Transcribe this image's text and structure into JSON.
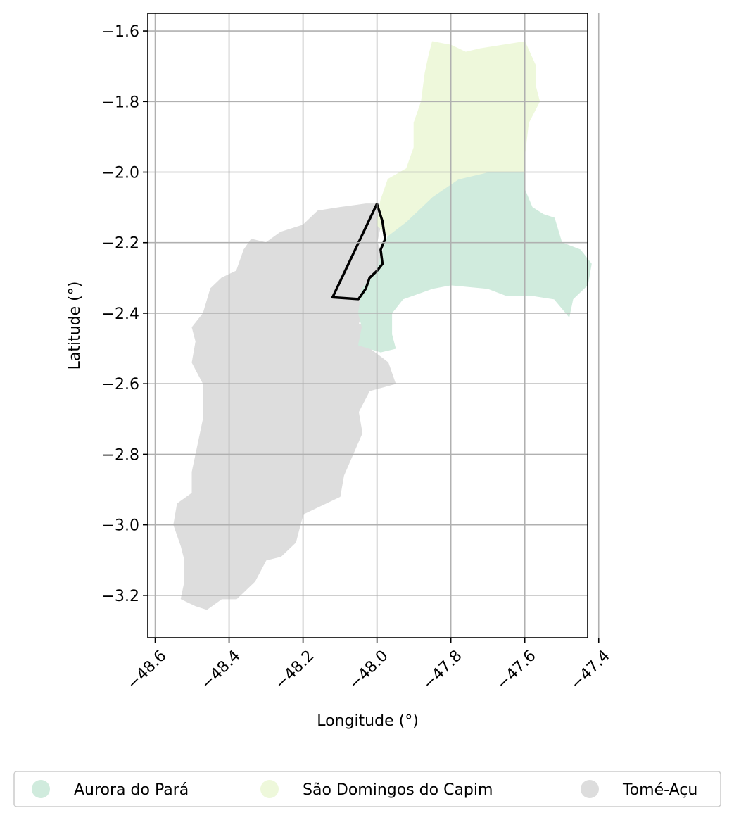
{
  "map": {
    "xlabel": "Longitude (°)",
    "ylabel": "Latitude (°)",
    "xlim": [
      -48.62,
      -47.43
    ],
    "ylim": [
      -3.32,
      -1.55
    ],
    "x_ticks": [
      -48.6,
      -48.4,
      -48.2,
      -48.0,
      -47.8,
      -47.6,
      -47.4
    ],
    "x_tick_labels": [
      "−48.6",
      "−48.4",
      "−48.2",
      "−48.0",
      "−47.8",
      "−47.6",
      "−47.4"
    ],
    "y_ticks": [
      -1.6,
      -1.8,
      -2.0,
      -2.2,
      -2.4,
      -2.6,
      -2.8,
      -3.0,
      -3.2
    ],
    "y_tick_labels": [
      "−1.6",
      "−1.8",
      "−2.0",
      "−2.2",
      "−2.4",
      "−2.6",
      "−2.8",
      "−3.0",
      "−3.2"
    ],
    "grid": true,
    "regions": [
      {
        "name": "Tomé-Açu",
        "color": "#dddddd",
        "outline": [
          [
            -48.49,
            -3.23
          ],
          [
            -48.53,
            -3.21
          ],
          [
            -48.52,
            -3.16
          ],
          [
            -48.52,
            -3.1
          ],
          [
            -48.53,
            -3.06
          ],
          [
            -48.55,
            -3.0
          ],
          [
            -48.54,
            -2.94
          ],
          [
            -48.5,
            -2.91
          ],
          [
            -48.5,
            -2.85
          ],
          [
            -48.49,
            -2.8
          ],
          [
            -48.47,
            -2.7
          ],
          [
            -48.47,
            -2.6
          ],
          [
            -48.5,
            -2.54
          ],
          [
            -48.49,
            -2.48
          ],
          [
            -48.5,
            -2.44
          ],
          [
            -48.47,
            -2.4
          ],
          [
            -48.45,
            -2.33
          ],
          [
            -48.42,
            -2.3
          ],
          [
            -48.38,
            -2.28
          ],
          [
            -48.36,
            -2.22
          ],
          [
            -48.34,
            -2.19
          ],
          [
            -48.3,
            -2.2
          ],
          [
            -48.26,
            -2.17
          ],
          [
            -48.2,
            -2.15
          ],
          [
            -48.16,
            -2.11
          ],
          [
            -48.1,
            -2.1
          ],
          [
            -48.03,
            -2.09
          ],
          [
            -48.0,
            -2.09
          ],
          [
            -47.99,
            -2.15
          ],
          [
            -48.0,
            -2.2
          ],
          [
            -47.98,
            -2.24
          ],
          [
            -47.99,
            -2.28
          ],
          [
            -48.03,
            -2.32
          ],
          [
            -48.05,
            -2.36
          ],
          [
            -48.04,
            -2.4
          ],
          [
            -48.05,
            -2.43
          ],
          [
            -48.02,
            -2.44
          ],
          [
            -48.02,
            -2.5
          ],
          [
            -47.97,
            -2.54
          ],
          [
            -47.95,
            -2.6
          ],
          [
            -48.02,
            -2.62
          ],
          [
            -48.05,
            -2.68
          ],
          [
            -48.04,
            -2.74
          ],
          [
            -48.09,
            -2.86
          ],
          [
            -48.1,
            -2.92
          ],
          [
            -48.2,
            -2.97
          ],
          [
            -48.22,
            -3.05
          ],
          [
            -48.26,
            -3.09
          ],
          [
            -48.3,
            -3.1
          ],
          [
            -48.33,
            -3.16
          ],
          [
            -48.38,
            -3.21
          ],
          [
            -48.42,
            -3.21
          ],
          [
            -48.46,
            -3.24
          ]
        ]
      },
      {
        "name": "Aurora do Pará",
        "color": "#d0ebdd",
        "outline": [
          [
            -47.6,
            -2.0
          ],
          [
            -47.7,
            -2.0
          ],
          [
            -47.78,
            -2.02
          ],
          [
            -47.85,
            -2.07
          ],
          [
            -47.92,
            -2.14
          ],
          [
            -47.97,
            -2.18
          ],
          [
            -47.99,
            -2.24
          ],
          [
            -48.0,
            -2.28
          ],
          [
            -48.04,
            -2.33
          ],
          [
            -48.05,
            -2.4
          ],
          [
            -48.04,
            -2.44
          ],
          [
            -48.05,
            -2.49
          ],
          [
            -47.99,
            -2.51
          ],
          [
            -47.95,
            -2.5
          ],
          [
            -47.96,
            -2.46
          ],
          [
            -47.96,
            -2.4
          ],
          [
            -47.93,
            -2.36
          ],
          [
            -47.85,
            -2.33
          ],
          [
            -47.8,
            -2.32
          ],
          [
            -47.7,
            -2.33
          ],
          [
            -47.65,
            -2.35
          ],
          [
            -47.58,
            -2.35
          ],
          [
            -47.52,
            -2.36
          ],
          [
            -47.48,
            -2.41
          ],
          [
            -47.47,
            -2.36
          ],
          [
            -47.43,
            -2.32
          ],
          [
            -47.42,
            -2.26
          ],
          [
            -47.45,
            -2.22
          ],
          [
            -47.5,
            -2.2
          ],
          [
            -47.52,
            -2.13
          ],
          [
            -47.55,
            -2.12
          ],
          [
            -47.58,
            -2.1
          ],
          [
            -47.6,
            -2.05
          ]
        ]
      },
      {
        "name": "São Domingos do Capim",
        "color": "#eef8db",
        "outline": [
          [
            -47.85,
            -1.63
          ],
          [
            -47.8,
            -1.64
          ],
          [
            -47.76,
            -1.66
          ],
          [
            -47.72,
            -1.65
          ],
          [
            -47.6,
            -1.63
          ],
          [
            -47.57,
            -1.7
          ],
          [
            -47.57,
            -1.76
          ],
          [
            -47.56,
            -1.8
          ],
          [
            -47.59,
            -1.86
          ],
          [
            -47.6,
            -1.95
          ],
          [
            -47.6,
            -2.0
          ],
          [
            -47.7,
            -2.0
          ],
          [
            -47.78,
            -2.02
          ],
          [
            -47.85,
            -2.07
          ],
          [
            -47.92,
            -2.14
          ],
          [
            -47.97,
            -2.18
          ],
          [
            -48.0,
            -2.15
          ],
          [
            -47.99,
            -2.08
          ],
          [
            -47.97,
            -2.02
          ],
          [
            -47.92,
            -1.99
          ],
          [
            -47.9,
            -1.93
          ],
          [
            -47.9,
            -1.86
          ],
          [
            -47.88,
            -1.8
          ],
          [
            -47.87,
            -1.72
          ],
          [
            -47.86,
            -1.67
          ]
        ]
      }
    ],
    "study_area_outline": {
      "color": "#000000",
      "points": [
        [
          -48.12,
          -2.355
        ],
        [
          -48.0,
          -2.09
        ],
        [
          -47.985,
          -2.14
        ],
        [
          -47.978,
          -2.19
        ],
        [
          -47.99,
          -2.22
        ],
        [
          -47.985,
          -2.26
        ],
        [
          -48.0,
          -2.28
        ],
        [
          -48.02,
          -2.3
        ],
        [
          -48.03,
          -2.33
        ],
        [
          -48.05,
          -2.36
        ]
      ]
    },
    "legend": [
      {
        "label": "Aurora do Pará",
        "color": "#d0ebdd"
      },
      {
        "label": "São Domingos do Capim",
        "color": "#eef8db"
      },
      {
        "label": "Tomé-Açu",
        "color": "#dddddd"
      }
    ]
  }
}
